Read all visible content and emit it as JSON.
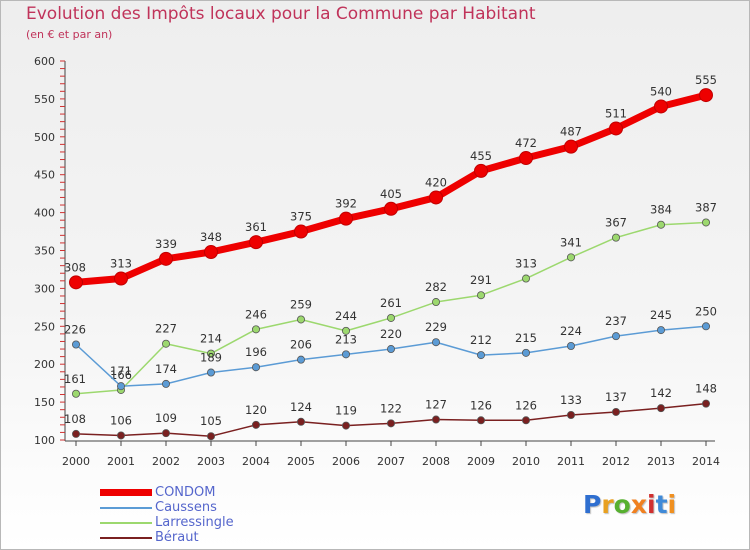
{
  "header": {
    "title": "Evolution des Impôts locaux pour la Commune par Habitant",
    "subtitle": "(en € et par an)"
  },
  "logo": {
    "text": "Proxiti",
    "colors": [
      "#2f6fd0",
      "#e8a020",
      "#57b030",
      "#f08020",
      "#d03030",
      "#3f8ad8",
      "#f09020"
    ]
  },
  "chart_data": {
    "type": "line",
    "title": "Evolution des Impôts locaux pour la Commune par Habitant",
    "subtitle": "(en € et par an)",
    "xlabel": "",
    "ylabel": "",
    "x": [
      "2000",
      "2001",
      "2002",
      "2003",
      "2004",
      "2005",
      "2006",
      "2007",
      "2008",
      "2009",
      "2010",
      "2011",
      "2012",
      "2013",
      "2014"
    ],
    "ylim": [
      100,
      600
    ],
    "yticks": [
      100,
      150,
      200,
      250,
      300,
      350,
      400,
      450,
      500,
      550,
      600
    ],
    "grid": false,
    "legend_position": "bottom-left",
    "series": [
      {
        "name": "CONDOM",
        "color": "#ee0000",
        "values": [
          308,
          313,
          339,
          348,
          361,
          375,
          392,
          405,
          420,
          455,
          472,
          487,
          511,
          540,
          555
        ]
      },
      {
        "name": "Caussens",
        "color": "#5b9bd5",
        "values": [
          226,
          171,
          174,
          189,
          196,
          206,
          213,
          220,
          229,
          212,
          215,
          224,
          237,
          245,
          250
        ]
      },
      {
        "name": "Larressingle",
        "color": "#9cd86e",
        "values": [
          161,
          166,
          227,
          214,
          246,
          259,
          244,
          261,
          282,
          291,
          313,
          341,
          367,
          384,
          387
        ]
      },
      {
        "name": "Béraut",
        "color": "#7a2020",
        "values": [
          108,
          106,
          109,
          105,
          120,
          124,
          119,
          122,
          127,
          126,
          126,
          133,
          137,
          142,
          148
        ]
      }
    ]
  }
}
